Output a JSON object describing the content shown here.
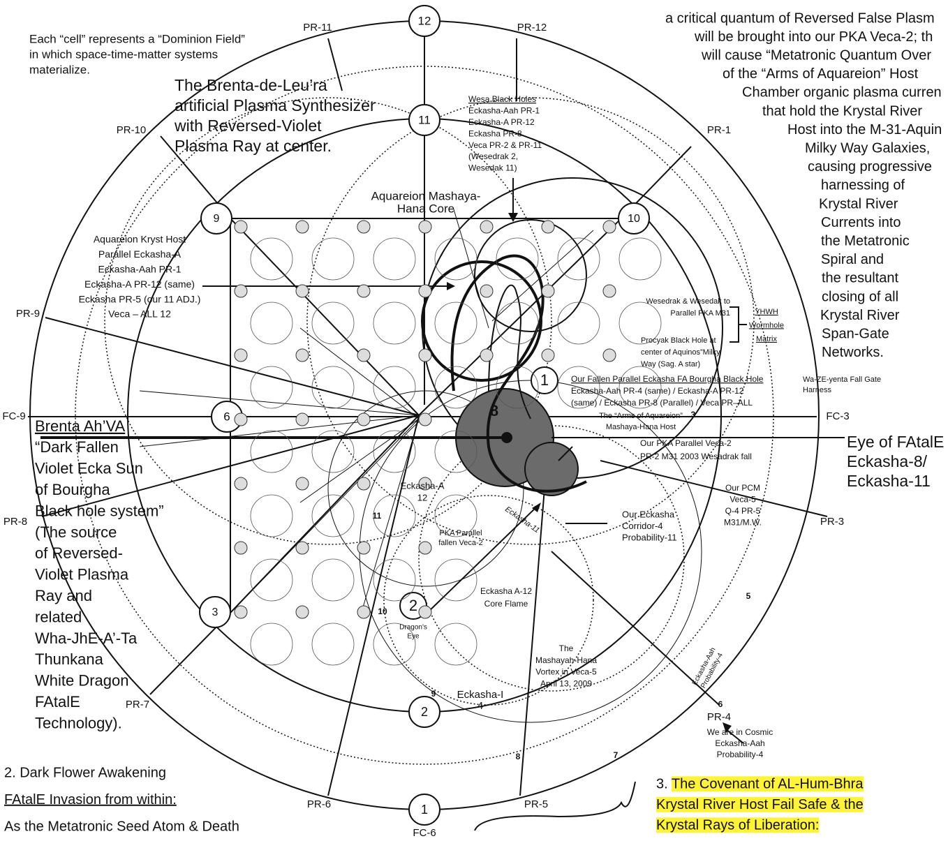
{
  "blocks": [
    {
      "lines": [
        "a critical quantum of Reversed False Plasm",
        "will be brought into our PKA Veca-2; th",
        "will cause “Metatronic Quantum Over",
        "of the “Arms of Aquareion” Host",
        "Chamber organic plasma curren",
        "that hold the Krystal River",
        "Host into the M-31-Aquin",
        "Milky Way Galaxies,",
        "causing progressive",
        "harnessing of",
        "Krystal River",
        "Currents into",
        "the Metatronic",
        "Spiral and",
        "the resultant",
        "closing of all",
        "Krystal River",
        "Span-Gate",
        "Networks."
      ]
    },
    {
      "lines": [
        "Each “cell” represents a “Dominion Field”",
        "in which space-time-matter systems",
        "materialize."
      ]
    },
    {
      "lines": [
        "The Brenta-de-Leu’ra",
        "artificial Plasma Synthesizer",
        "with Reversed-Violet",
        "Plasma Ray at center."
      ]
    },
    {
      "lines": [
        "Wesa Black Holes",
        "Eckasha-Aah PR-1",
        "Eckasha-A PR-12",
        "Eckasha PR-8",
        "Veca PR-2 & PR-11",
        "(Wesedrak 2,",
        "Wesedak 11)"
      ]
    },
    {
      "lines": [
        "Aquareion Mashaya-",
        "Hana Core"
      ]
    },
    {
      "lines": [
        "Aquareion Kryst Host",
        "Parallel Eckasha-A",
        "Eckasha-Aah PR-1",
        "Eckasha-A PR-12 (same)",
        "Eckasha PR-5 (our 11 ADJ.)",
        "Veca – ALL 12"
      ]
    },
    {
      "lines": [
        "Wesedrak & Wesedak to",
        "Parallel PKA M31"
      ]
    },
    {
      "lines": [
        "Procyak Black Hole at",
        "center of Aquinos”Milky",
        "Way (Sag. A star)"
      ]
    },
    {
      "lines": [
        "YHWH",
        "Wormhole",
        "Matrix"
      ]
    },
    {
      "lines": [
        "Our Fallen Parallel Eckasha FA Bourgha Black Hole",
        "Eckasha-Aah PR-4 (same) / Eckasha-A  PR-12",
        "(same) / Eckasha PR-8 (Parallel) / Veca PR–ALL"
      ]
    },
    {
      "lines": [
        "Wa-ZE-yenta Fall Gate",
        "Harness"
      ]
    },
    {
      "lines": [
        "The “Arms of Aquareion”",
        "Mashaya-Hana Host"
      ]
    },
    {
      "lines": [
        "Our PKA Parallel Veca-2",
        "PR-2 M31 2003 Wesadrak fall"
      ]
    },
    {
      "lines": [
        "Eye of FAtalE",
        "Eckasha-8/",
        "Eckasha-11"
      ]
    },
    {
      "lines": [
        "Our PCM",
        "Veca-5",
        "Q-4 PR-5",
        "M31/M.W."
      ]
    },
    {
      "lines": [
        "Our Eckasha",
        "Corridor-4",
        "Probability-11"
      ]
    },
    {
      "lines": [
        "Eckasha-A",
        "12"
      ]
    },
    {
      "lines": [
        "PKA Parallel",
        "fallen Veca-2"
      ]
    },
    {
      "lines": [
        "Eckasha A-12",
        "Core Flame"
      ]
    },
    {
      "lines": [
        "Dragon's",
        "Eye"
      ]
    },
    {
      "lines": [
        "The",
        "Mashayah-Hana",
        "Vortex in Veca-5",
        "April 13, 2009"
      ]
    },
    {
      "lines": [
        "Eckasha-I",
        "4"
      ]
    },
    {
      "lines": [
        "Eckasha-Aah",
        "Probability-4"
      ]
    },
    {
      "lines": [
        "We are in Cosmic",
        "Eckasha-Aah",
        "Probability-4"
      ]
    },
    {
      "lines": [
        "Brenta Ah’VA",
        "“Dark Fallen",
        "Violet Ecka Sun",
        "of Bourgha",
        "Black hole system”",
        "(The source",
        "of Reversed-",
        "Violet Plasma",
        "Ray and",
        "related",
        "Wha-JhE-A’-Ta",
        "Thunkana",
        "White Dragon",
        "FAtalE",
        "Technology)."
      ]
    },
    {
      "lines": [
        "2. Dark Flower Awakening",
        "FAtalE Invasion from within:",
        "As the Metatronic Seed Atom & Death"
      ]
    },
    {
      "lines": [
        "3. The Covenant of AL-Hum-Bhra",
        "Krystal River Host Fail Safe & the",
        "Krystal Rays of Liberation:"
      ]
    }
  ],
  "labels": [
    "PR-11",
    "PR-12",
    "PR-10",
    "PR-1",
    "PR-9",
    "FC-9",
    "FC-3",
    "PR-8",
    "PR-3",
    "PR-7",
    "PR-4",
    "PR-6",
    "PR-5",
    "FC-6",
    "12",
    "11",
    "9",
    "10",
    "6",
    "3",
    "2",
    "1",
    "1",
    "2",
    "8",
    "3",
    "5",
    "6",
    "7",
    "8",
    "9",
    "10",
    "11",
    "Eckasha-11"
  ]
}
